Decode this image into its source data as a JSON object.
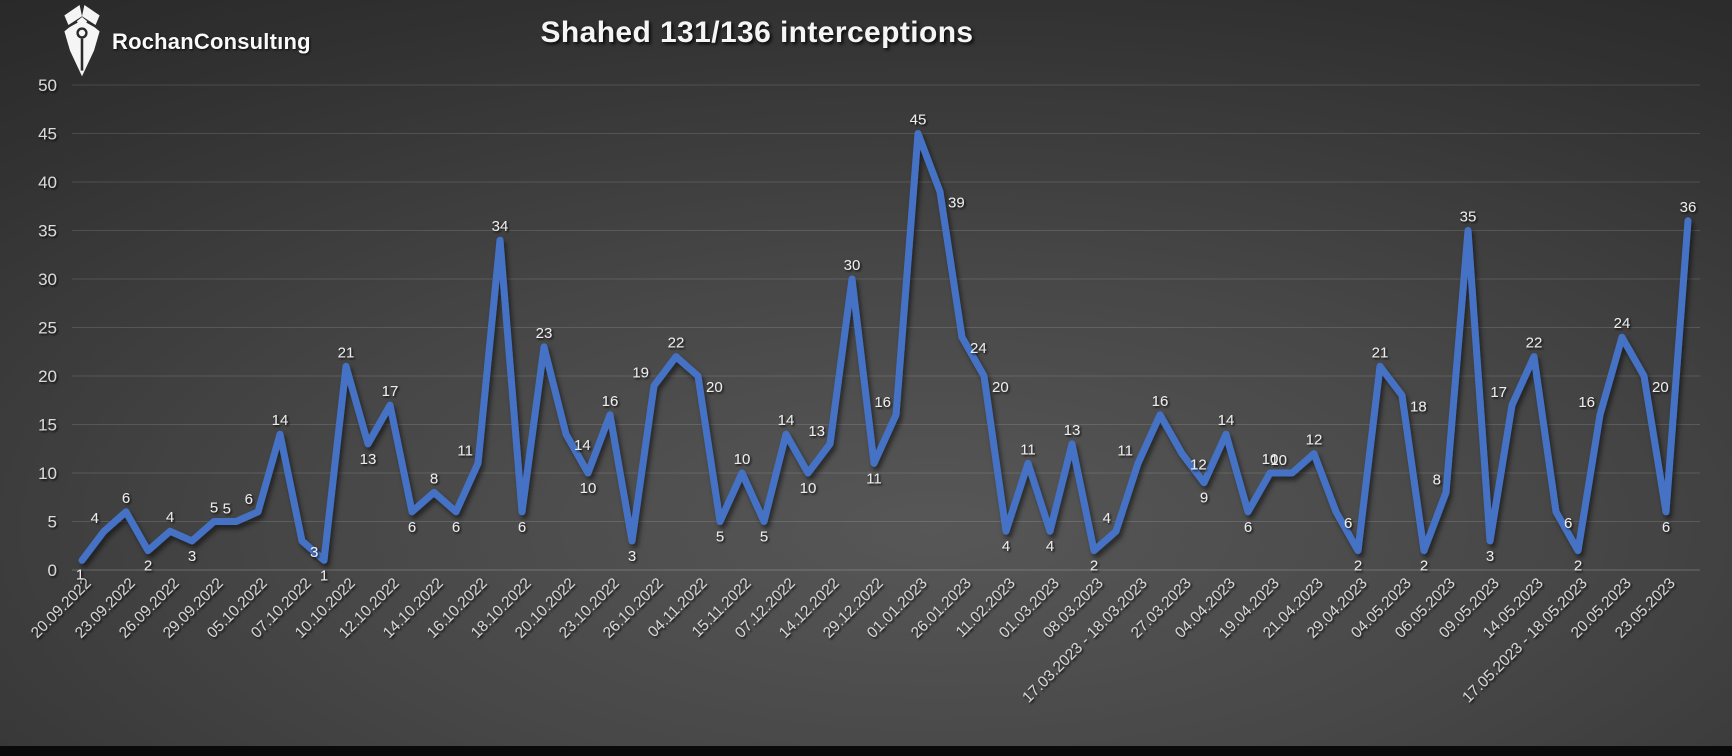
{
  "header": {
    "logo_text": "RochanConsultıng",
    "logo_icon": "pen-nib-icon"
  },
  "chart_data": {
    "type": "line",
    "title": "Shahed 131/136 interceptions",
    "series": [
      {
        "name": "Shahed 131/136 interceptions",
        "values": [
          1,
          4,
          6,
          2,
          4,
          3,
          5,
          5,
          6,
          14,
          3,
          1,
          21,
          13,
          17,
          6,
          8,
          6,
          11,
          34,
          6,
          23,
          14,
          10,
          16,
          3,
          19,
          22,
          20,
          5,
          10,
          5,
          14,
          10,
          13,
          30,
          11,
          16,
          45,
          39,
          24,
          20,
          4,
          11,
          4,
          13,
          2,
          4,
          11,
          16,
          12,
          9,
          14,
          6,
          10,
          10,
          12,
          6,
          2,
          21,
          18,
          2,
          8,
          35,
          3,
          17,
          22,
          6,
          2,
          16,
          24,
          20,
          6,
          36
        ]
      }
    ],
    "x_labels": [
      "20.09.2022",
      "23.09.2022",
      "26.09.2022",
      "29.09.2022",
      "05.10.2022",
      "07.10.2022",
      "10.10.2022",
      "12.10.2022",
      "14.10.2022",
      "16.10.2022",
      "18.10.2022",
      "20.10.2022",
      "23.10.2022",
      "26.10.2022",
      "04.11.2022",
      "15.11.2022",
      "07.12.2022",
      "14.12.2022",
      "29.12.2022",
      "01.01.2023",
      "26.01.2023",
      "11.02.2023",
      "01.03.2023",
      "08.03.2023",
      "17.03.2023 - 18.03.2023",
      "27.03.2023",
      "04.04.2023",
      "19.04.2023",
      "21.04.2023",
      "29.04.2023",
      "04.05.2023",
      "06.05.2023",
      "09.05.2023",
      "14.05.2023",
      "17.05.2023 - 18.05.2023",
      "20.05.2023",
      "23.05.2023"
    ],
    "x_label_every_n_points": 2,
    "xlabel": "",
    "ylabel": "",
    "ylim": [
      0,
      50
    ],
    "y_ticks": [
      0,
      5,
      10,
      15,
      20,
      25,
      30,
      35,
      40,
      45,
      50
    ],
    "grid": "horizontal",
    "legend": "none",
    "data_labels": true,
    "colors": {
      "line": "#4472C4",
      "data_label": "#ececec",
      "axis_label": "#d9d9d9",
      "gridline": "rgba(255,255,255,0.13)",
      "title": "#f5f5f5",
      "background_inner": "#575757",
      "background_outer": "#1b1b1b"
    }
  }
}
